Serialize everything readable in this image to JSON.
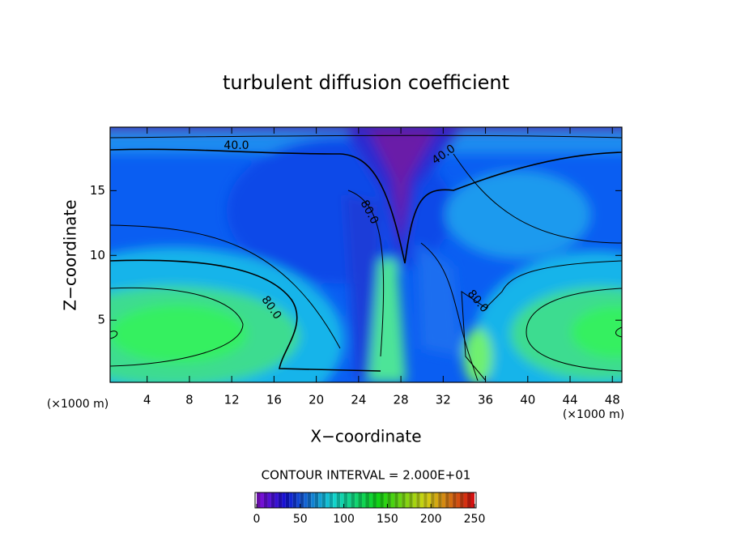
{
  "chart_data": {
    "type": "contour",
    "title": "turbulent diffusion coefficient",
    "x_label": "X−coordinate",
    "y_label": "Z−coordinate",
    "unit_labels": [
      "(×1000 m)",
      "(×1000 m)"
    ],
    "xlim": [
      0.5,
      48.9
    ],
    "xticks": [
      4,
      8,
      12,
      16,
      20,
      24,
      28,
      32,
      36,
      40,
      44,
      48
    ],
    "ylim": [
      0.2,
      19.9
    ],
    "yticks": [
      5,
      10,
      15
    ],
    "contour_labels": [
      "40.0",
      "40.0",
      "80.0",
      "80.0",
      "80.0"
    ],
    "contour_interval": "CONTOUR INTERVAL = 2.000E+01",
    "colorbar": {
      "lim": [
        0,
        250
      ],
      "ticks": [
        0,
        50,
        100,
        150,
        200,
        250
      ]
    }
  }
}
